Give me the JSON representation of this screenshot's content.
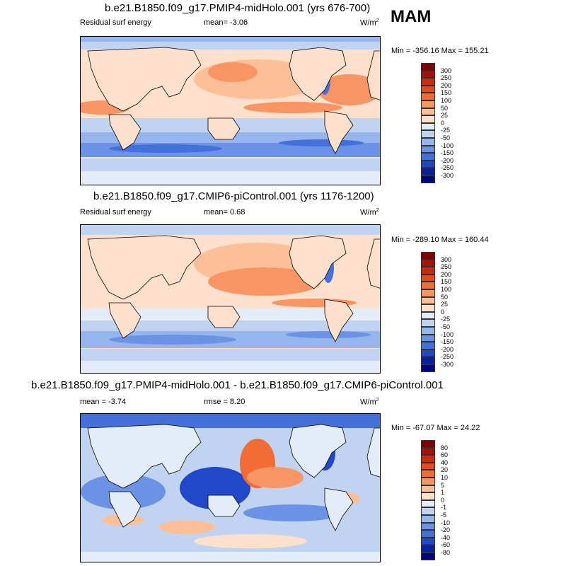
{
  "season": "MAM",
  "units_prefix": "W/m",
  "units_sup": "2",
  "panels": [
    {
      "title": "b.e21.B1850.f09_g17.PMIP4-midHolo.001 (yrs 676-700)",
      "left_label": "Residual surf energy",
      "center_label": "mean=  -3.06",
      "range_label": "Min = -356.16 Max = 155.21",
      "levels": [
        "300",
        "250",
        "200",
        "150",
        "100",
        "50",
        "25",
        "0",
        "-25",
        "-50",
        "-100",
        "-150",
        "-200",
        "-250",
        "-300"
      ]
    },
    {
      "title": "b.e21.B1850.f09_g17.CMIP6-piControl.001 (yrs 1176-1200)",
      "left_label": "Residual surf energy",
      "center_label": "mean=   0.68",
      "range_label": "Min = -289.10 Max = 160.44",
      "levels": [
        "300",
        "250",
        "200",
        "150",
        "100",
        "50",
        "25",
        "0",
        "-25",
        "-50",
        "-100",
        "-150",
        "-200",
        "-250",
        "-300"
      ]
    },
    {
      "title": "b.e21.B1850.f09_g17.PMIP4-midHolo.001 - b.e21.B1850.f09_g17.CMIP6-piControl.001",
      "left_label": "mean =  -3.74",
      "center_label": "rmse =   8.20",
      "range_label": "Min = -67.07 Max =  24.22",
      "levels": [
        "80",
        "60",
        "40",
        "20",
        "10",
        "5",
        "1",
        "0",
        "-1",
        "-5",
        "-10",
        "-20",
        "-40",
        "-60",
        "-80"
      ]
    }
  ],
  "colors": [
    "#7f0000",
    "#a8110a",
    "#cc2a10",
    "#e8481d",
    "#f36c36",
    "#f99562",
    "#fdbf98",
    "#fee0cc",
    "#e3ecf8",
    "#c0d4f2",
    "#95b5ec",
    "#6b92e4",
    "#4570dc",
    "#2148c8",
    "#0b1fa0",
    "#000080"
  ],
  "chart_data": [
    {
      "type": "heatmap",
      "title": "b.e21.B1850.f09_g17.PMIP4-midHolo.001 (yrs 676-700)",
      "variable": "Residual surf energy",
      "units": "W/m2",
      "mean": -3.06,
      "min": -356.16,
      "max": 155.21,
      "contour_levels": [
        -300,
        -250,
        -200,
        -150,
        -100,
        -50,
        -25,
        0,
        25,
        50,
        100,
        150,
        200,
        250,
        300
      ]
    },
    {
      "type": "heatmap",
      "title": "b.e21.B1850.f09_g17.CMIP6-piControl.001 (yrs 1176-1200)",
      "variable": "Residual surf energy",
      "units": "W/m2",
      "mean": 0.68,
      "min": -289.1,
      "max": 160.44,
      "contour_levels": [
        -300,
        -250,
        -200,
        -150,
        -100,
        -50,
        -25,
        0,
        25,
        50,
        100,
        150,
        200,
        250,
        300
      ]
    },
    {
      "type": "heatmap",
      "title": "b.e21.B1850.f09_g17.PMIP4-midHolo.001 - b.e21.B1850.f09_g17.CMIP6-piControl.001",
      "units": "W/m2",
      "mean": -3.74,
      "rmse": 8.2,
      "min": -67.07,
      "max": 24.22,
      "contour_levels": [
        -80,
        -60,
        -40,
        -20,
        -10,
        -5,
        -1,
        0,
        1,
        5,
        10,
        20,
        40,
        60,
        80
      ]
    }
  ]
}
